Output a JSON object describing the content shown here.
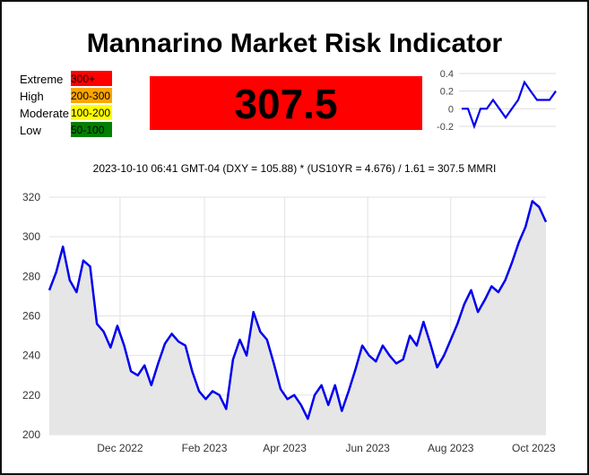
{
  "title": "Mannarino Market Risk Indicator",
  "legend": [
    {
      "label": "Extreme",
      "range": "300+",
      "color": "#ff0000"
    },
    {
      "label": "High",
      "range": "200-300",
      "color": "#ffa500"
    },
    {
      "label": "Moderate",
      "range": "100-200",
      "color": "#ffff00"
    },
    {
      "label": "Low",
      "range": "50-100",
      "color": "#008000"
    }
  ],
  "current_value": "307.5",
  "current_color": "#ff0000",
  "formula": "2023-10-10 06:41 GMT-04 (DXY = 105.88) * (US10YR = 4.676) / 1.61 = 307.5 MMRI",
  "chart_data": [
    {
      "type": "line",
      "series": [
        {
          "values": [
            0,
            0,
            -0.2,
            0,
            0,
            0.1,
            0,
            -0.1,
            0,
            0.1,
            0.3,
            0.2,
            0.1,
            0.1,
            0.1,
            0.2
          ]
        }
      ],
      "yticks": [
        "0.4",
        "0.2",
        "0",
        "-0.2"
      ],
      "ylim": [
        -0.2,
        0.4
      ],
      "line_color": "#0000ee",
      "grid": true
    },
    {
      "type": "area",
      "x": [
        "2022-10-10",
        "2022-10-15",
        "2022-10-20",
        "2022-10-25",
        "2022-10-30",
        "2022-11-04",
        "2022-11-09",
        "2022-11-14",
        "2022-11-19",
        "2022-11-24",
        "2022-11-29",
        "2022-12-04",
        "2022-12-09",
        "2022-12-14",
        "2022-12-19",
        "2022-12-24",
        "2022-12-29",
        "2023-01-03",
        "2023-01-08",
        "2023-01-13",
        "2023-01-18",
        "2023-01-23",
        "2023-01-28",
        "2023-02-02",
        "2023-02-07",
        "2023-02-12",
        "2023-02-17",
        "2023-02-22",
        "2023-02-27",
        "2023-03-04",
        "2023-03-09",
        "2023-03-14",
        "2023-03-19",
        "2023-03-24",
        "2023-03-29",
        "2023-04-03",
        "2023-04-08",
        "2023-04-13",
        "2023-04-18",
        "2023-04-23",
        "2023-04-28",
        "2023-05-03",
        "2023-05-08",
        "2023-05-13",
        "2023-05-18",
        "2023-05-23",
        "2023-05-28",
        "2023-06-02",
        "2023-06-07",
        "2023-06-12",
        "2023-06-17",
        "2023-06-22",
        "2023-06-27",
        "2023-07-02",
        "2023-07-07",
        "2023-07-12",
        "2023-07-17",
        "2023-07-22",
        "2023-07-27",
        "2023-08-01",
        "2023-08-06",
        "2023-08-11",
        "2023-08-16",
        "2023-08-21",
        "2023-08-26",
        "2023-08-31",
        "2023-09-05",
        "2023-09-10",
        "2023-09-15",
        "2023-09-20",
        "2023-09-25",
        "2023-09-30",
        "2023-10-05",
        "2023-10-10"
      ],
      "values": [
        273,
        282,
        295,
        278,
        272,
        288,
        285,
        256,
        252,
        244,
        255,
        245,
        232,
        230,
        235,
        225,
        236,
        246,
        251,
        247,
        245,
        232,
        222,
        218,
        222,
        220,
        213,
        238,
        248,
        240,
        262,
        252,
        248,
        236,
        223,
        218,
        220,
        215,
        208,
        220,
        225,
        215,
        225,
        212,
        222,
        233,
        245,
        240,
        237,
        245,
        240,
        236,
        238,
        250,
        245,
        257,
        246,
        234,
        240,
        248,
        256,
        266,
        273,
        262,
        268,
        275,
        272,
        278,
        287,
        297,
        305,
        318,
        315,
        307.5
      ],
      "xticks": [
        "Dec 2022",
        "Feb 2023",
        "Apr 2023",
        "Jun 2023",
        "Aug 2023",
        "Oct 2023"
      ],
      "xtick_dates": [
        "2022-12-01",
        "2023-02-01",
        "2023-04-01",
        "2023-06-01",
        "2023-08-01",
        "2023-10-01"
      ],
      "yticks": [
        "320",
        "300",
        "280",
        "260",
        "240",
        "220",
        "200"
      ],
      "ylim": [
        200,
        320
      ],
      "xlim": [
        "2022-10-10",
        "2023-10-10"
      ],
      "line_color": "#0000ee",
      "fill_color": "#e6e6e6",
      "grid": true
    }
  ]
}
